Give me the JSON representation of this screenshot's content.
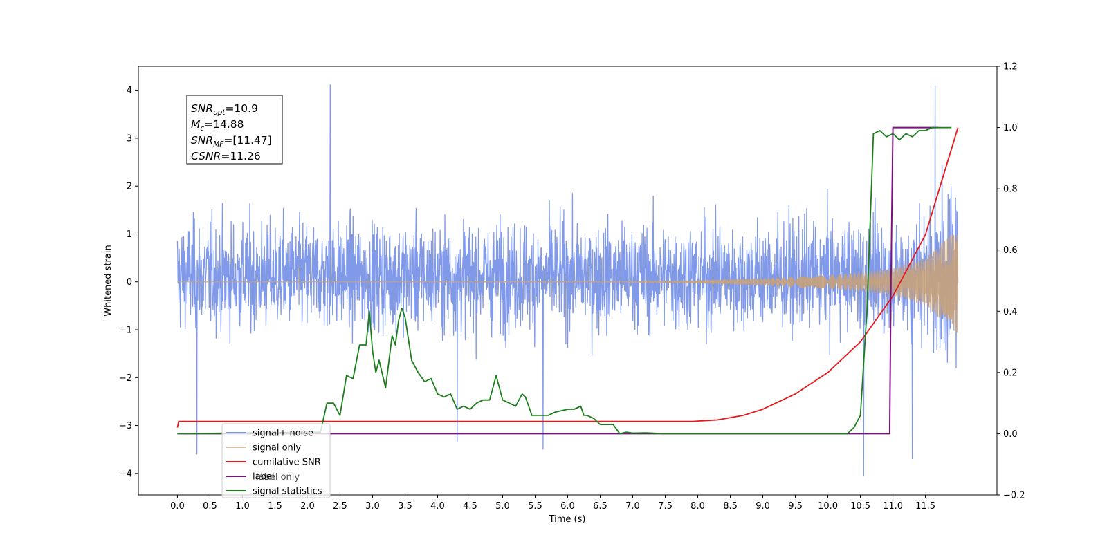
{
  "chart_data": {
    "type": "line",
    "xlabel": "Time (s)",
    "ylabel": "Whitened strain",
    "xlim": [
      -0.6,
      12.6
    ],
    "ylim": [
      -4.45,
      4.5
    ],
    "ylim_right": [
      -0.2,
      1.2
    ],
    "x_ticks": [
      "0.0",
      "0.5",
      "1.0",
      "1.5",
      "2.0",
      "2.5",
      "3.0",
      "3.5",
      "4.0",
      "4.5",
      "5.0",
      "5.5",
      "6.0",
      "6.5",
      "7.0",
      "7.5",
      "8.0",
      "8.5",
      "9.0",
      "9.5",
      "10.0",
      "10.5",
      "11.0",
      "11.5"
    ],
    "y_ticks_left": [
      "4",
      "3",
      "2",
      "1",
      "0",
      "−1",
      "−2",
      "−3",
      "−4"
    ],
    "y_ticks_right": [
      "1.2",
      "1.0",
      "0.8",
      "0.6",
      "0.4",
      "0.2",
      "0.0",
      "−0.2"
    ],
    "annotation": {
      "lines": [
        {
          "sym": "SNR",
          "sub": "opt",
          "val": "=10.9"
        },
        {
          "sym": "M",
          "sub": "c",
          "val": "=14.88"
        },
        {
          "sym": "SNR",
          "sub": "MF",
          "val": "=[11.47]"
        },
        {
          "sym": "CSNR",
          "sub": "",
          "val": "=11.26"
        }
      ]
    },
    "legend": {
      "placement": "lower-left",
      "entries": [
        "signal+ noise",
        "signal only",
        "cumilative SNR",
        "label",
        "signal statistics"
      ],
      "obscured_text": "label only"
    },
    "series": [
      {
        "name": "signal+ noise",
        "axis": "left",
        "color": "#7a94e8",
        "x_range": [
          0.0,
          12.0
        ],
        "envelope_typical": [
          -1.85,
          2.3
        ],
        "notable_peaks": [
          [
            2.35,
            4.12
          ],
          [
            11.65,
            4.1
          ],
          [
            0.3,
            -3.6
          ],
          [
            10.55,
            -4.05
          ],
          [
            11.3,
            -3.7
          ],
          [
            4.3,
            -3.35
          ],
          [
            5.62,
            -3.5
          ]
        ]
      },
      {
        "name": "signal only",
        "axis": "left",
        "color": "#c8a27a",
        "x": [
          0,
          7,
          8,
          9,
          10,
          10.5,
          11,
          11.5,
          12
        ],
        "amplitude": [
          0.003,
          0.005,
          0.03,
          0.08,
          0.14,
          0.2,
          0.28,
          0.5,
          1.1
        ]
      },
      {
        "name": "cumilative SNR",
        "axis": "right",
        "color": "#e8171a",
        "x": [
          0,
          0.02,
          7.9,
          8.3,
          8.7,
          9.0,
          9.5,
          10.0,
          10.5,
          11.0,
          11.5,
          12.0
        ],
        "y": [
          0.02,
          0.04,
          0.04,
          0.045,
          0.06,
          0.08,
          0.13,
          0.2,
          0.3,
          0.45,
          0.65,
          1.0
        ]
      },
      {
        "name": "label",
        "axis": "right",
        "color": "#7b1282",
        "x": [
          0,
          10.95,
          10.97,
          11.0,
          11.7
        ],
        "y": [
          0,
          0,
          0.5,
          1.0,
          1.0
        ]
      },
      {
        "name": "signal statistics",
        "axis": "right",
        "color": "#1b7f1b",
        "x": [
          0,
          2.2,
          2.3,
          2.4,
          2.5,
          2.6,
          2.7,
          2.8,
          2.9,
          2.95,
          3.0,
          3.05,
          3.1,
          3.2,
          3.3,
          3.35,
          3.4,
          3.45,
          3.5,
          3.6,
          3.7,
          3.8,
          3.9,
          4.0,
          4.1,
          4.2,
          4.3,
          4.4,
          4.5,
          4.6,
          4.7,
          4.8,
          4.9,
          5.0,
          5.1,
          5.2,
          5.3,
          5.35,
          5.45,
          5.5,
          5.6,
          5.7,
          5.8,
          6.0,
          6.1,
          6.2,
          6.25,
          6.3,
          6.4,
          6.5,
          6.6,
          6.7,
          6.8,
          6.9,
          7.0,
          7.2,
          7.5,
          8.0,
          9.0,
          10.0,
          10.3,
          10.4,
          10.5,
          10.6,
          10.7,
          10.8,
          10.9,
          11.0,
          11.1,
          11.2,
          11.3,
          11.4,
          11.5,
          11.6,
          11.7,
          11.9
        ],
        "y": [
          0.0,
          0.005,
          0.1,
          0.1,
          0.06,
          0.19,
          0.18,
          0.29,
          0.29,
          0.4,
          0.27,
          0.2,
          0.24,
          0.15,
          0.32,
          0.29,
          0.37,
          0.41,
          0.38,
          0.24,
          0.2,
          0.17,
          0.18,
          0.13,
          0.12,
          0.13,
          0.08,
          0.09,
          0.08,
          0.1,
          0.11,
          0.11,
          0.19,
          0.11,
          0.1,
          0.09,
          0.13,
          0.12,
          0.06,
          0.06,
          0.06,
          0.06,
          0.07,
          0.08,
          0.08,
          0.09,
          0.06,
          0.06,
          0.05,
          0.03,
          0.03,
          0.03,
          0.0,
          0.005,
          0.002,
          0.003,
          0.0,
          0.0,
          0.0,
          0.0,
          0.0,
          0.02,
          0.06,
          0.4,
          0.98,
          0.99,
          0.97,
          0.98,
          0.96,
          0.98,
          0.97,
          0.99,
          0.99,
          1.0,
          1.0,
          1.0
        ]
      }
    ]
  }
}
